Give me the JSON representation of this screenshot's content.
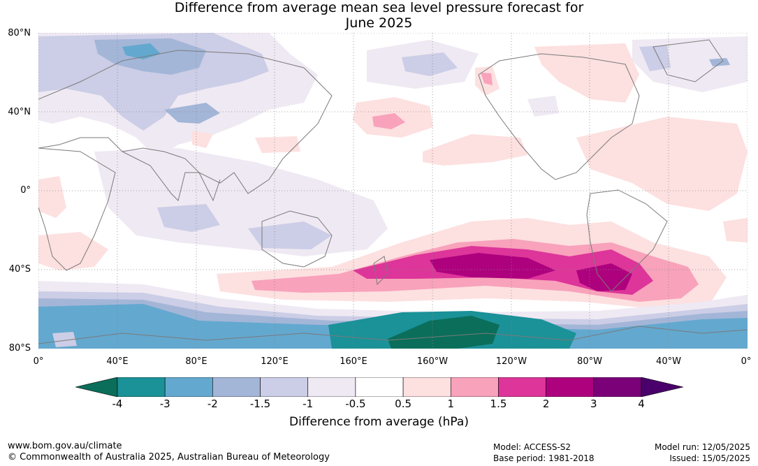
{
  "title_line1": "Difference from average mean sea level pressure forecast for",
  "title_line2": "June 2025",
  "lat_labels": [
    "80°N",
    "40°N",
    "0°",
    "40°S",
    "80°S"
  ],
  "lon_labels": [
    "0°",
    "40°E",
    "80°E",
    "120°E",
    "160°E",
    "160°W",
    "120°W",
    "80°W",
    "40°W",
    "0°"
  ],
  "colorbar": {
    "ticks": [
      "-4",
      "-3",
      "-2",
      "-1.5",
      "-1",
      "-0.5",
      "0.5",
      "1",
      "1.5",
      "2",
      "3",
      "4"
    ],
    "colors": [
      "#0a6e5a",
      "#1b9198",
      "#63a8cf",
      "#a3b6d8",
      "#cccde6",
      "#efe9f3",
      "#ffffff",
      "#fde0e0",
      "#f8a2bb",
      "#dd3599",
      "#ae017e",
      "#7a0177",
      "#49006a"
    ],
    "label": "Difference from average (hPa)"
  },
  "footer": {
    "url": "www.bom.gov.au/climate",
    "copyright": "© Commonwealth of Australia 2025, Australian Bureau of Meteorology",
    "model": "Model: ACCESS-S2",
    "base_period": "Base period: 1981-2018",
    "model_run": "Model run: 12/05/2025",
    "issued": "Issued: 15/05/2025"
  }
}
